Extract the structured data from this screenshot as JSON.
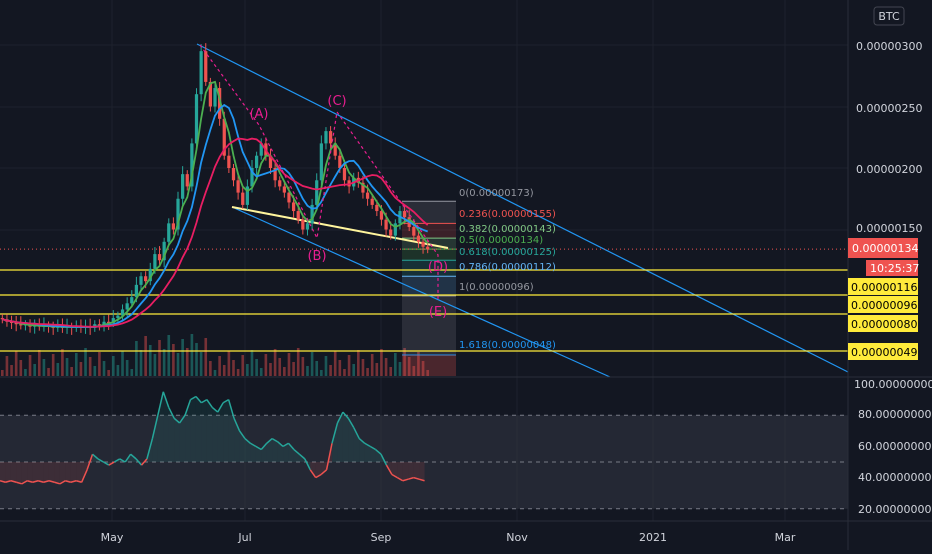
{
  "currency_badge": "BTC",
  "colors": {
    "background": "#131722",
    "grid": "#1e222d",
    "up": "#26a69a",
    "down": "#ef5350",
    "channel": "#2196f3",
    "ma_fast": "#4caf50",
    "ma_mid": "#2196f3",
    "ma_slow": "#e91e63",
    "support": "#ffeb3b",
    "wave": "#e91e90"
  },
  "price_axis": {
    "ticks": [
      "0.00000300",
      "0.00000250",
      "0.00000200",
      "0.00000150"
    ],
    "current_price": "0.00000134",
    "countdown": "10:25:37",
    "support_tags": [
      "0.00000116",
      "0.00000096",
      "0.00000080",
      "0.00000049"
    ]
  },
  "rsi_axis": {
    "ticks": [
      "100.00000000",
      "80.00000000",
      "60.00000000",
      "40.00000000",
      "20.00000000"
    ]
  },
  "time_axis": [
    "May",
    "Jul",
    "Sep",
    "Nov",
    "2021",
    "Mar"
  ],
  "fib_levels": [
    {
      "label": "0(0.00000173)",
      "color": "#9598a1"
    },
    {
      "label": "0.236(0.00000155)",
      "color": "#ef5350"
    },
    {
      "label": "0.382(0.00000143)",
      "color": "#81c784"
    },
    {
      "label": "0.5(0.00000134)",
      "color": "#4caf50"
    },
    {
      "label": "0.618(0.00000125)",
      "color": "#26a69a"
    },
    {
      "label": "0.786(0.00000112)",
      "color": "#64b5f6"
    },
    {
      "label": "1(0.00000096)",
      "color": "#9598a1"
    },
    {
      "label": "1.618(0.00000048)",
      "color": "#2196f3"
    }
  ],
  "wave_labels": [
    "(A)",
    "(B)",
    "(C)",
    "(D)",
    "(E)"
  ],
  "chart_data": {
    "type": "candlestick",
    "price_ylim": [
      4e-07,
      3.2e-06
    ],
    "rsi_ylim": [
      15,
      100
    ],
    "rsi_bands": [
      80,
      50,
      20
    ],
    "support_levels": [
      1.16e-06,
      9.6e-07,
      8e-07,
      4.9e-07
    ],
    "current_price": 1.34e-06,
    "fib_values": [
      1.73e-06,
      1.55e-06,
      1.43e-06,
      1.34e-06,
      1.25e-06,
      1.12e-06,
      9.6e-07,
      4.8e-07
    ],
    "price_path": [
      [
        7.8e-07,
        7.7e-07
      ],
      [
        7.7e-07,
        7.5e-07
      ],
      [
        7.5e-07,
        7.4e-07
      ],
      [
        7.4e-07,
        7.3e-07
      ],
      [
        7.3e-07,
        7.2e-07
      ],
      [
        7.2e-07,
        7.3e-07
      ],
      [
        7.3e-07,
        7.1e-07
      ],
      [
        7.1e-07,
        7.2e-07
      ],
      [
        7.2e-07,
        7.1e-07
      ],
      [
        7.1e-07,
        7.2e-07
      ],
      [
        7.2e-07,
        7.1e-07
      ],
      [
        7.1e-07,
        7e-07
      ],
      [
        7e-07,
        7.2e-07
      ],
      [
        7.2e-07,
        7e-07
      ],
      [
        7e-07,
        7.1e-07
      ],
      [
        7.1e-07,
        7e-07
      ],
      [
        7e-07,
        7.2e-07
      ],
      [
        7.2e-07,
        7e-07
      ],
      [
        7e-07,
        7.1e-07
      ],
      [
        7.1e-07,
        7e-07
      ],
      [
        7e-07,
        7.3e-07
      ],
      [
        7.3e-07,
        7.2e-07
      ],
      [
        7.2e-07,
        7.5e-07
      ],
      [
        7.5e-07,
        7.4e-07
      ],
      [
        7.4e-07,
        7.8e-07
      ],
      [
        7.8e-07,
        8e-07
      ],
      [
        8e-07,
        8.5e-07
      ],
      [
        8.5e-07,
        9e-07
      ],
      [
        9e-07,
        9.5e-07
      ],
      [
        9.5e-07,
        1.05e-06
      ],
      [
        1.05e-06,
        1.12e-06
      ],
      [
        1.12e-06,
        1.08e-06
      ],
      [
        1.08e-06,
        1.18e-06
      ],
      [
        1.18e-06,
        1.3e-06
      ],
      [
        1.3e-06,
        1.25e-06
      ],
      [
        1.25e-06,
        1.4e-06
      ],
      [
        1.4e-06,
        1.55e-06
      ],
      [
        1.55e-06,
        1.5e-06
      ],
      [
        1.5e-06,
        1.75e-06
      ],
      [
        1.75e-06,
        1.95e-06
      ],
      [
        1.95e-06,
        1.85e-06
      ],
      [
        1.85e-06,
        2.2e-06
      ],
      [
        2.2e-06,
        2.6e-06
      ],
      [
        2.6e-06,
        2.95e-06
      ],
      [
        2.95e-06,
        2.7e-06
      ],
      [
        2.7e-06,
        2.5e-06
      ],
      [
        2.5e-06,
        2.65e-06
      ],
      [
        2.65e-06,
        2.4e-06
      ],
      [
        2.4e-06,
        2.1e-06
      ],
      [
        2.1e-06,
        2e-06
      ],
      [
        2e-06,
        1.9e-06
      ],
      [
        1.9e-06,
        1.8e-06
      ],
      [
        1.8e-06,
        1.7e-06
      ],
      [
        1.7e-06,
        1.85e-06
      ],
      [
        1.85e-06,
        2e-06
      ],
      [
        2e-06,
        2.1e-06
      ],
      [
        2.1e-06,
        2.2e-06
      ],
      [
        2.2e-06,
        2.1e-06
      ],
      [
        2.1e-06,
        2e-06
      ],
      [
        2e-06,
        1.9e-06
      ],
      [
        1.9e-06,
        1.85e-06
      ],
      [
        1.85e-06,
        1.8e-06
      ],
      [
        1.8e-06,
        1.72e-06
      ],
      [
        1.72e-06,
        1.65e-06
      ],
      [
        1.65e-06,
        1.58e-06
      ],
      [
        1.58e-06,
        1.5e-06
      ],
      [
        1.5e-06,
        1.55e-06
      ],
      [
        1.55e-06,
        1.7e-06
      ],
      [
        1.7e-06,
        1.9e-06
      ],
      [
        1.9e-06,
        2.2e-06
      ],
      [
        2.2e-06,
        2.3e-06
      ],
      [
        2.3e-06,
        2.2e-06
      ],
      [
        2.2e-06,
        2.1e-06
      ],
      [
        2.1e-06,
        2e-06
      ],
      [
        2e-06,
        1.9e-06
      ],
      [
        1.9e-06,
        1.85e-06
      ],
      [
        1.85e-06,
        1.92e-06
      ],
      [
        1.92e-06,
        1.88e-06
      ],
      [
        1.88e-06,
        1.8e-06
      ],
      [
        1.8e-06,
        1.75e-06
      ],
      [
        1.75e-06,
        1.7e-06
      ],
      [
        1.7e-06,
        1.65e-06
      ],
      [
        1.65e-06,
        1.58e-06
      ],
      [
        1.58e-06,
        1.5e-06
      ],
      [
        1.5e-06,
        1.45e-06
      ],
      [
        1.45e-06,
        1.55e-06
      ],
      [
        1.55e-06,
        1.65e-06
      ],
      [
        1.65e-06,
        1.6e-06
      ],
      [
        1.6e-06,
        1.52e-06
      ],
      [
        1.52e-06,
        1.45e-06
      ],
      [
        1.45e-06,
        1.4e-06
      ],
      [
        1.4e-06,
        1.36e-06
      ],
      [
        1.36e-06,
        1.34e-06
      ]
    ],
    "rsi_values": [
      38,
      37,
      38,
      37,
      36,
      38,
      37,
      38,
      37,
      38,
      37,
      36,
      38,
      37,
      38,
      37,
      45,
      55,
      52,
      50,
      48,
      50,
      52,
      50,
      55,
      52,
      48,
      52,
      65,
      80,
      95,
      85,
      78,
      75,
      80,
      90,
      92,
      88,
      90,
      85,
      82,
      88,
      90,
      78,
      70,
      65,
      62,
      60,
      58,
      62,
      65,
      63,
      60,
      62,
      58,
      55,
      52,
      45,
      40,
      42,
      45,
      62,
      75,
      82,
      78,
      72,
      65,
      62,
      60,
      58,
      55,
      48,
      42,
      40,
      38,
      39,
      40,
      39,
      38
    ]
  }
}
